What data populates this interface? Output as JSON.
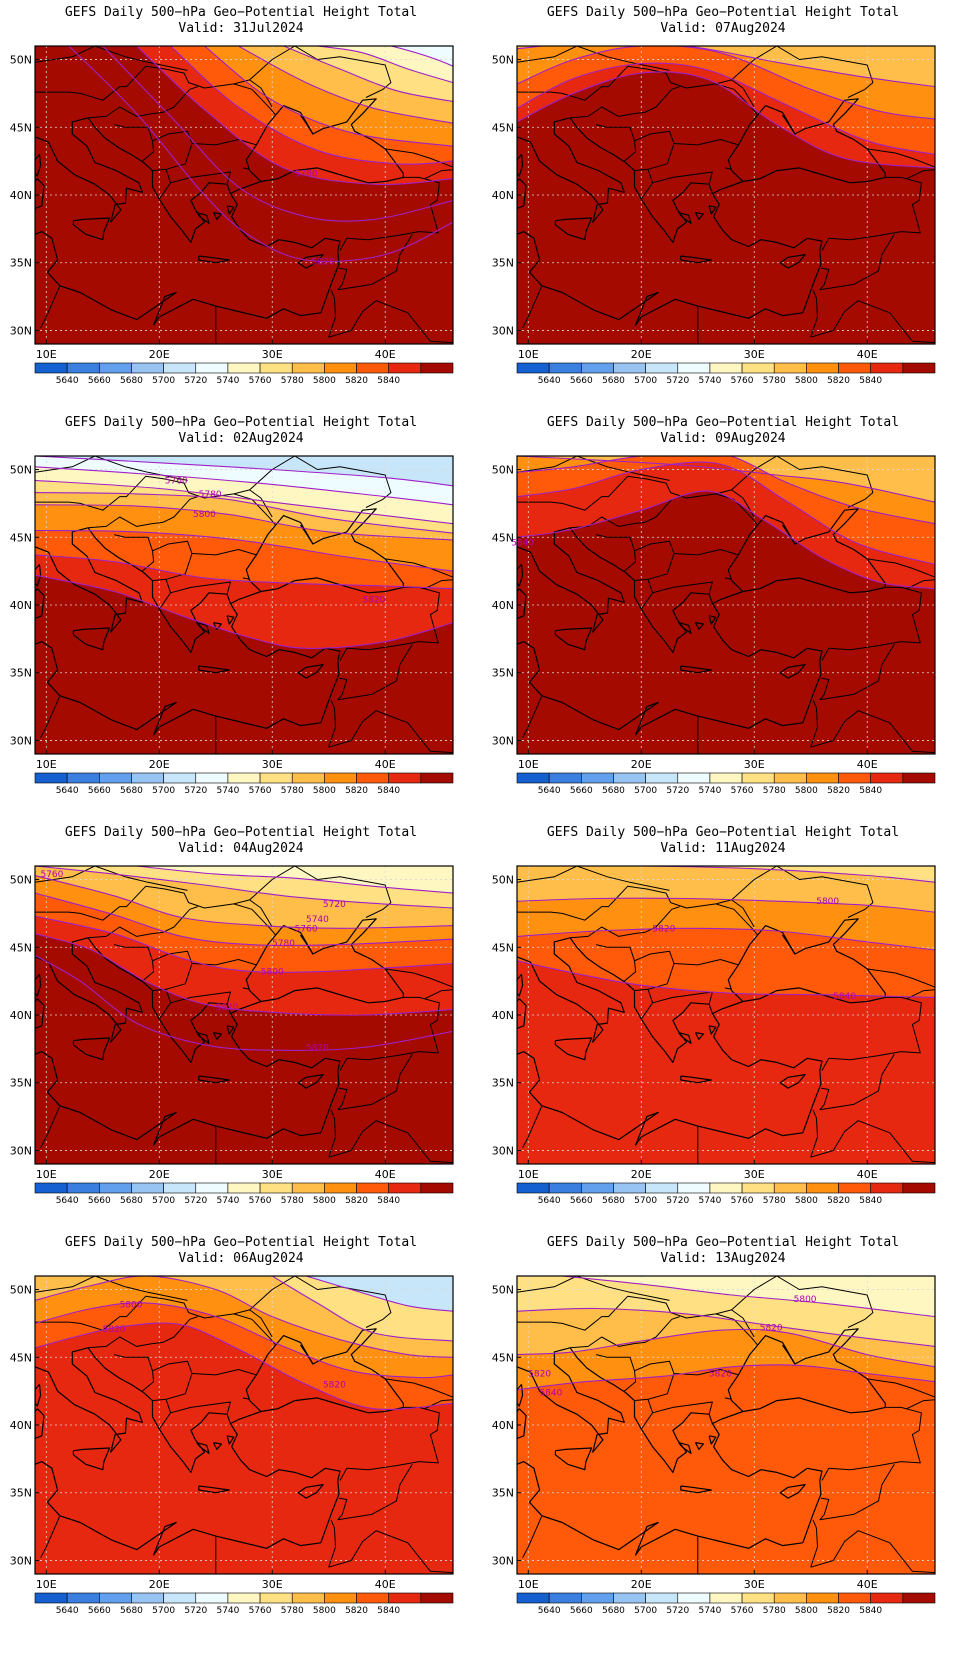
{
  "figure": {
    "title_line": "GEFS Daily 500−hPa Geo−Potential Height Total",
    "valid_prefix": "Valid:"
  },
  "axes": {
    "lon_ticks": [
      "10E",
      "20E",
      "30E",
      "40E"
    ],
    "lat_ticks": [
      "50N",
      "45N",
      "40N",
      "35N",
      "30N"
    ],
    "lon_values": [
      10,
      20,
      30,
      40
    ],
    "lat_values": [
      50,
      45,
      40,
      35,
      30
    ],
    "lon_range": [
      9,
      46
    ],
    "lat_range": [
      29,
      51
    ],
    "grid": true
  },
  "colorbar": {
    "labels": [
      "5640",
      "5660",
      "5680",
      "5700",
      "5720",
      "5740",
      "5760",
      "5780",
      "5800",
      "5820",
      "5840"
    ],
    "colors": [
      "#1560d0",
      "#3a7ee0",
      "#62a0ee",
      "#98c4f4",
      "#c8e6fa",
      "#eefcff",
      "#fff7c2",
      "#ffe183",
      "#ffbe4a",
      "#ff9010",
      "#ff5a0a",
      "#e62810",
      "#a50a00"
    ]
  },
  "contour_color": "#a020c8",
  "panels": [
    {
      "valid": "31Jul2024",
      "contour_labels": [
        "5780",
        "5820"
      ]
    },
    {
      "valid": "07Aug2024",
      "contour_labels": []
    },
    {
      "valid": "02Aug2024",
      "contour_labels": [
        "5760",
        "5780",
        "5800",
        "5820"
      ]
    },
    {
      "valid": "09Aug2024",
      "contour_labels": [
        "5840"
      ]
    },
    {
      "valid": "04Aug2024",
      "contour_labels": [
        "5760",
        "5720",
        "5740",
        "5760",
        "5780",
        "5800",
        "5820",
        "5820"
      ]
    },
    {
      "valid": "11Aug2024",
      "contour_labels": [
        "5800",
        "5820",
        "5840"
      ]
    },
    {
      "valid": "06Aug2024",
      "contour_labels": [
        "5800",
        "5820",
        "5820"
      ]
    },
    {
      "valid": "13Aug2024",
      "contour_labels": [
        "5800",
        "5820",
        "5820",
        "5820",
        "5840"
      ]
    }
  ]
}
